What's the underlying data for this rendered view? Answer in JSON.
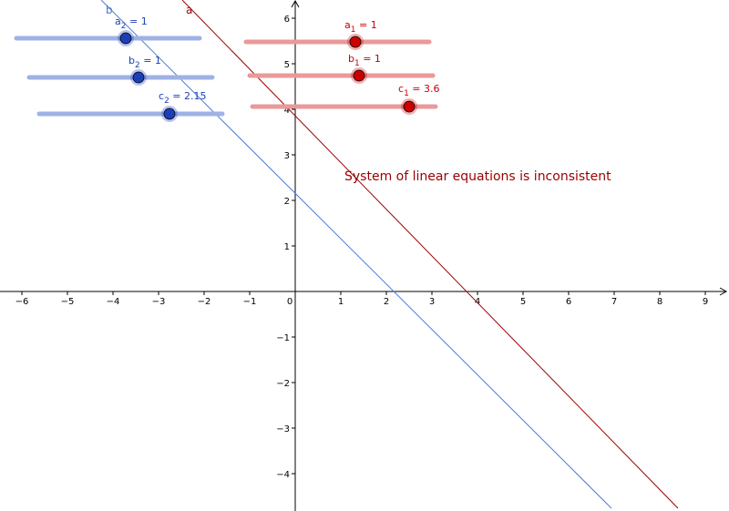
{
  "view": {
    "x_ticks": [
      "−6",
      "−5",
      "−4",
      "−3",
      "−2",
      "−1",
      "0",
      "1",
      "2",
      "3",
      "4",
      "5",
      "6",
      "7",
      "8",
      "9"
    ],
    "y_ticks": [
      "−4",
      "−3",
      "−2",
      "−1",
      "1",
      "2",
      "3",
      "4",
      "5",
      "6"
    ],
    "axis_color": "#000000"
  },
  "lines": [
    {
      "label": "a",
      "equation": "a1*x + b1*y = c1",
      "color": "#990000"
    },
    {
      "label": "b",
      "equation": "a2*x + b2*y = c2",
      "color": "#4b7bd8"
    }
  ],
  "sliders": {
    "a1": {
      "name": "a",
      "sub": "1",
      "value": "1",
      "value_text": " = 1",
      "color": "#cc0000",
      "track_color": "#ea9999"
    },
    "b1": {
      "name": "b",
      "sub": "1",
      "value": "1",
      "value_text": " = 1",
      "color": "#cc0000",
      "track_color": "#ea9999"
    },
    "c1": {
      "name": "c",
      "sub": "1",
      "value": "3.6",
      "value_text": " = 3.6",
      "color": "#cc0000",
      "track_color": "#ea9999"
    },
    "a2": {
      "name": "a",
      "sub": "2",
      "value": "1",
      "value_text": " = 1",
      "color": "#1c3fb8",
      "track_color": "#9fb2e6"
    },
    "b2": {
      "name": "b",
      "sub": "2",
      "value": "1",
      "value_text": " = 1",
      "color": "#1c3fb8",
      "track_color": "#9fb2e6"
    },
    "c2": {
      "name": "c",
      "sub": "2",
      "value": "2.15",
      "value_text": " = 2.15",
      "color": "#1c3fb8",
      "track_color": "#9fb2e6"
    }
  },
  "status": {
    "text": "System of linear equations is inconsistent",
    "color": "#990000"
  }
}
